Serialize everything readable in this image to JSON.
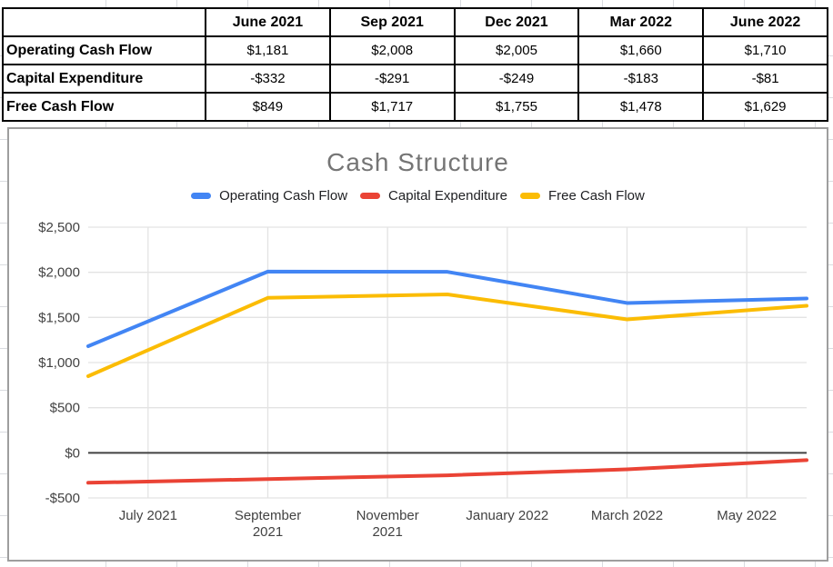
{
  "table": {
    "columns": [
      "",
      "June 2021",
      "Sep 2021",
      "Dec 2021",
      "Mar 2022",
      "June 2022"
    ],
    "rows": [
      {
        "label": "Operating Cash Flow",
        "values": [
          "$1,181",
          "$2,008",
          "$2,005",
          "$1,660",
          "$1,710"
        ]
      },
      {
        "label": "Capital Expenditure",
        "values": [
          "-$332",
          "-$291",
          "-$249",
          "-$183",
          "-$81"
        ]
      },
      {
        "label": "Free Cash Flow",
        "values": [
          "$849",
          "$1,717",
          "$1,755",
          "$1,478",
          "$1,629"
        ]
      }
    ]
  },
  "chart_data": {
    "type": "line",
    "title": "Cash Structure",
    "legend_position": "top",
    "grid": true,
    "x_categories": [
      "June 2021",
      "Sep 2021",
      "Dec 2021",
      "Mar 2022",
      "June 2022"
    ],
    "x_month_offsets": [
      0,
      3,
      6,
      9,
      12
    ],
    "x_month_span": 12,
    "series": [
      {
        "name": "Operating Cash Flow",
        "color": "#4285F4",
        "values": [
          1181,
          2008,
          2005,
          1660,
          1710
        ]
      },
      {
        "name": "Capital Expenditure",
        "color": "#EA4335",
        "values": [
          -332,
          -291,
          -249,
          -183,
          -81
        ]
      },
      {
        "name": "Free Cash Flow",
        "color": "#FBBC04",
        "values": [
          849,
          1717,
          1755,
          1478,
          1629
        ]
      }
    ],
    "y_axis": {
      "min": -500,
      "max": 2500,
      "step": 500,
      "tick_labels": [
        "$2,500",
        "$2,000",
        "$1,500",
        "$1,000",
        "$500",
        "$0",
        "-$500"
      ]
    },
    "x_ticks": [
      {
        "month_offset": 1,
        "lines": [
          "July 2021"
        ]
      },
      {
        "month_offset": 3,
        "lines": [
          "September",
          "2021"
        ]
      },
      {
        "month_offset": 5,
        "lines": [
          "November",
          "2021"
        ]
      },
      {
        "month_offset": 7,
        "lines": [
          "January 2022"
        ]
      },
      {
        "month_offset": 9,
        "lines": [
          "March 2022"
        ]
      },
      {
        "month_offset": 11,
        "lines": [
          "May 2022"
        ]
      }
    ],
    "colors": {
      "grid": "#e3e3e3",
      "zero_line": "#424242",
      "axis_text": "#424242",
      "title": "#757575"
    }
  }
}
